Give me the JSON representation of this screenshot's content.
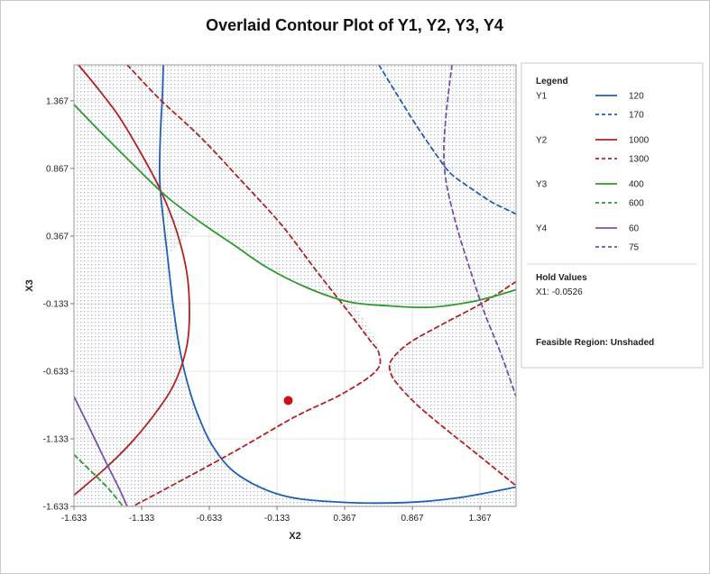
{
  "chart_data": {
    "type": "contour",
    "title": "Overlaid Contour Plot of Y1, Y2, Y3, Y4",
    "xlabel": "X2",
    "ylabel": "X3",
    "xlim": [
      -1.633,
      1.633
    ],
    "ylim": [
      -1.633,
      1.633
    ],
    "xticks": [
      -1.633,
      -1.133,
      -0.633,
      -0.133,
      0.367,
      0.867,
      1.367
    ],
    "yticks": [
      -1.633,
      -1.133,
      -0.633,
      -0.133,
      0.367,
      0.867,
      1.367
    ],
    "xtick_labels": [
      "-1.633",
      "-1.133",
      "-0.633",
      "-0.133",
      "0.367",
      "0.867",
      "1.367"
    ],
    "ytick_labels": [
      "-1.633",
      "-1.133",
      "-0.633",
      "-0.133",
      "0.367",
      "0.867",
      "1.367"
    ],
    "colors": {
      "Y1": "#1f5fb4",
      "Y2": "#b22222",
      "Y3": "#2e9a2e",
      "Y4": "#7a4fb0",
      "point": "#d01010",
      "grid": "#e4e4e4",
      "dots": "#a8b2c4"
    },
    "series": [
      {
        "name": "Y1",
        "level": "120",
        "style": "solid",
        "color_key": "Y1",
        "points": [
          [
            -0.973,
            1.633
          ],
          [
            -0.98,
            1.4
          ],
          [
            -0.995,
            1.1
          ],
          [
            -1.0,
            0.8
          ],
          [
            -0.98,
            0.55
          ],
          [
            -0.94,
            0.2
          ],
          [
            -0.9,
            -0.15
          ],
          [
            -0.855,
            -0.45
          ],
          [
            -0.8,
            -0.7
          ],
          [
            -0.72,
            -0.95
          ],
          [
            -0.6,
            -1.2
          ],
          [
            -0.42,
            -1.4
          ],
          [
            -0.1,
            -1.55
          ],
          [
            0.3,
            -1.6
          ],
          [
            0.8,
            -1.605
          ],
          [
            1.2,
            -1.57
          ],
          [
            1.633,
            -1.49
          ]
        ]
      },
      {
        "name": "Y1",
        "level": "170",
        "style": "dashed",
        "color_key": "Y1",
        "points": [
          [
            0.62,
            1.633
          ],
          [
            0.75,
            1.42
          ],
          [
            0.9,
            1.18
          ],
          [
            1.05,
            0.96
          ],
          [
            1.15,
            0.83
          ],
          [
            1.3,
            0.72
          ],
          [
            1.45,
            0.62
          ],
          [
            1.55,
            0.57
          ],
          [
            1.633,
            0.53
          ]
        ]
      },
      {
        "name": "Y2",
        "level": "1000",
        "style": "solid",
        "color_key": "Y2",
        "points": [
          [
            -1.6,
            1.633
          ],
          [
            -1.45,
            1.45
          ],
          [
            -1.3,
            1.25
          ],
          [
            -1.15,
            1.0
          ],
          [
            -1.0,
            0.72
          ],
          [
            -0.88,
            0.42
          ],
          [
            -0.8,
            0.1
          ],
          [
            -0.78,
            -0.2
          ],
          [
            -0.8,
            -0.45
          ],
          [
            -0.88,
            -0.7
          ],
          [
            -1.0,
            -0.9
          ],
          [
            -1.2,
            -1.15
          ],
          [
            -1.4,
            -1.35
          ],
          [
            -1.633,
            -1.55
          ]
        ]
      },
      {
        "name": "Y2",
        "level": "1300",
        "style": "dashed",
        "color_key": "Y2",
        "points": [
          [
            -1.24,
            1.633
          ],
          [
            -1.0,
            1.38
          ],
          [
            -0.7,
            1.1
          ],
          [
            -0.4,
            0.78
          ],
          [
            -0.1,
            0.45
          ],
          [
            0.15,
            0.12
          ],
          [
            0.4,
            -0.2
          ],
          [
            0.55,
            -0.4
          ],
          [
            0.62,
            -0.5
          ],
          [
            0.6,
            -0.63
          ],
          [
            0.35,
            -0.8
          ],
          [
            0.0,
            -0.97
          ],
          [
            -0.4,
            -1.2
          ],
          [
            -0.8,
            -1.42
          ],
          [
            -1.2,
            -1.633
          ]
        ]
      },
      {
        "name": "Y2",
        "level": "1300",
        "style": "dashed",
        "color_key": "Y2",
        "points": [
          [
            1.633,
            0.03
          ],
          [
            1.4,
            -0.12
          ],
          [
            1.1,
            -0.28
          ],
          [
            0.85,
            -0.42
          ],
          [
            0.72,
            -0.54
          ],
          [
            0.7,
            -0.62
          ],
          [
            0.75,
            -0.72
          ],
          [
            0.9,
            -0.88
          ],
          [
            1.1,
            -1.05
          ],
          [
            1.35,
            -1.25
          ],
          [
            1.633,
            -1.48
          ]
        ]
      },
      {
        "name": "Y3",
        "level": "400",
        "style": "solid",
        "color_key": "Y3",
        "points": [
          [
            -1.633,
            1.34
          ],
          [
            -1.45,
            1.15
          ],
          [
            -1.2,
            0.9
          ],
          [
            -0.95,
            0.66
          ],
          [
            -0.7,
            0.47
          ],
          [
            -0.45,
            0.3
          ],
          [
            -0.2,
            0.13
          ],
          [
            0.1,
            -0.02
          ],
          [
            0.4,
            -0.12
          ],
          [
            0.7,
            -0.15
          ],
          [
            1.0,
            -0.16
          ],
          [
            1.3,
            -0.12
          ],
          [
            1.5,
            -0.07
          ],
          [
            1.633,
            -0.03
          ]
        ]
      },
      {
        "name": "Y3",
        "level": "600",
        "style": "dashed",
        "color_key": "Y3",
        "points": [
          [
            -1.633,
            -1.25
          ],
          [
            -1.5,
            -1.38
          ],
          [
            -1.38,
            -1.5
          ],
          [
            -1.27,
            -1.633
          ]
        ]
      },
      {
        "name": "Y4",
        "level": "60",
        "style": "solid",
        "color_key": "Y4",
        "points": [
          [
            -1.633,
            -0.82
          ],
          [
            -1.52,
            -1.05
          ],
          [
            -1.4,
            -1.3
          ],
          [
            -1.3,
            -1.5
          ],
          [
            -1.24,
            -1.633
          ]
        ]
      },
      {
        "name": "Y4",
        "level": "75",
        "style": "dashed",
        "color_key": "Y4",
        "points": [
          [
            1.16,
            1.633
          ],
          [
            1.12,
            1.3
          ],
          [
            1.1,
            1.0
          ],
          [
            1.12,
            0.75
          ],
          [
            1.2,
            0.42
          ],
          [
            1.3,
            0.1
          ],
          [
            1.4,
            -0.2
          ],
          [
            1.52,
            -0.5
          ],
          [
            1.633,
            -0.82
          ]
        ]
      }
    ],
    "point": {
      "x": -0.05,
      "y": -0.85
    },
    "legend": {
      "title": "Legend",
      "placement": "right",
      "groups": [
        {
          "name": "Y1",
          "color_key": "Y1",
          "levels": [
            "120",
            "170"
          ]
        },
        {
          "name": "Y2",
          "color_key": "Y2",
          "levels": [
            "1000",
            "1300"
          ]
        },
        {
          "name": "Y3",
          "color_key": "Y3",
          "levels": [
            "400",
            "600"
          ]
        },
        {
          "name": "Y4",
          "color_key": "Y4",
          "levels": [
            "60",
            "75"
          ]
        }
      ],
      "hold_title": "Hold Values",
      "hold_value": "X1: -0.0526",
      "feasible": "Feasible Region: Unshaded"
    }
  }
}
